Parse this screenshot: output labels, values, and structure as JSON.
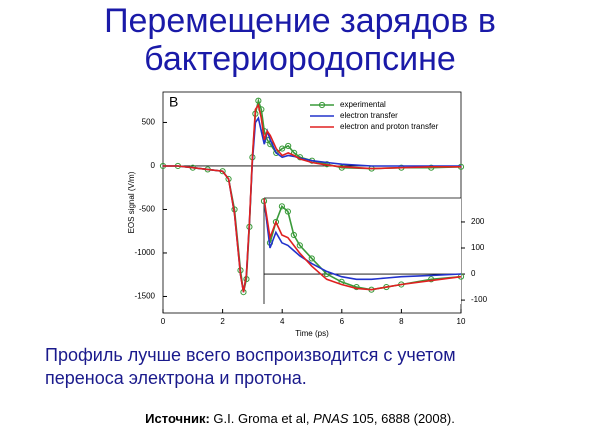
{
  "slide": {
    "title_lines": [
      "Перемещение зарядов в",
      "бактериородопсине"
    ],
    "caption_lines": [
      "Профиль лучше всего воспроизводится с учетом",
      "переноса электрона и протона."
    ],
    "source": {
      "label": "Источник:",
      "authors": "G.I. Groma et al,",
      "journal": "PNAS",
      "ref": "105, 6888 (2008)."
    }
  },
  "chart_data": [
    {
      "type": "line",
      "panel_label": "B",
      "x_label": "Time (ps)",
      "y_label": "EOS signal (V/m)",
      "xlim": [
        0,
        10
      ],
      "xticks": [
        0,
        2,
        4,
        6,
        8,
        10
      ],
      "ylim": [
        -1690,
        850
      ],
      "yticks": [
        500,
        0,
        -500,
        -1000,
        -1500
      ],
      "x": [
        0,
        0.5,
        1,
        1.5,
        2,
        2.2,
        2.4,
        2.6,
        2.7,
        2.8,
        2.9,
        3,
        3.1,
        3.2,
        3.3,
        3.4,
        3.5,
        3.6,
        3.8,
        4,
        4.2,
        4.4,
        4.6,
        5,
        5.5,
        6,
        7,
        8,
        9,
        10
      ],
      "series": [
        {
          "name": "experimental",
          "color": "#3a9a3a",
          "markers": true,
          "values": [
            0,
            0,
            -20,
            -40,
            -60,
            -150,
            -500,
            -1200,
            -1450,
            -1300,
            -700,
            100,
            600,
            750,
            650,
            400,
            300,
            250,
            150,
            200,
            230,
            150,
            100,
            60,
            20,
            -20,
            -30,
            -20,
            -20,
            -10
          ]
        },
        {
          "name": "electron transfer",
          "color": "#2233cc",
          "markers": false,
          "values": [
            0,
            0,
            -20,
            -40,
            -60,
            -150,
            -550,
            -1250,
            -1450,
            -1250,
            -650,
            50,
            500,
            550,
            400,
            250,
            400,
            300,
            150,
            100,
            120,
            110,
            90,
            60,
            40,
            20,
            0,
            0,
            0,
            0
          ]
        },
        {
          "name": "electron and proton transfer",
          "color": "#e02020",
          "markers": false,
          "values": [
            0,
            0,
            -20,
            -40,
            -60,
            -150,
            -550,
            -1250,
            -1450,
            -1250,
            -650,
            100,
            650,
            700,
            550,
            300,
            400,
            350,
            200,
            120,
            150,
            120,
            80,
            40,
            10,
            -10,
            -30,
            -20,
            -10,
            -10
          ]
        }
      ]
    },
    {
      "type": "line",
      "xlim": [
        3.4,
        10
      ],
      "ylim": [
        -115,
        292
      ],
      "yticks": [
        200,
        100,
        0,
        -100
      ],
      "x": [
        3.4,
        3.6,
        3.8,
        4,
        4.2,
        4.4,
        4.6,
        5,
        5.5,
        6,
        6.5,
        7,
        7.5,
        8,
        9,
        10
      ],
      "series": [
        {
          "name": "experimental",
          "color": "#3a9a3a",
          "markers": true,
          "values": [
            280,
            120,
            200,
            260,
            240,
            150,
            110,
            60,
            0,
            -30,
            -50,
            -60,
            -50,
            -40,
            -20,
            -10
          ]
        },
        {
          "name": "electron transfer",
          "color": "#2233cc",
          "markers": false,
          "values": [
            290,
            100,
            160,
            120,
            110,
            90,
            70,
            40,
            10,
            -10,
            -20,
            -20,
            -15,
            -10,
            -5,
            0
          ]
        },
        {
          "name": "electron and proton transfer",
          "color": "#e02020",
          "markers": false,
          "values": [
            290,
            140,
            200,
            150,
            140,
            110,
            80,
            30,
            -20,
            -40,
            -55,
            -60,
            -50,
            -40,
            -25,
            -10
          ]
        }
      ]
    }
  ]
}
